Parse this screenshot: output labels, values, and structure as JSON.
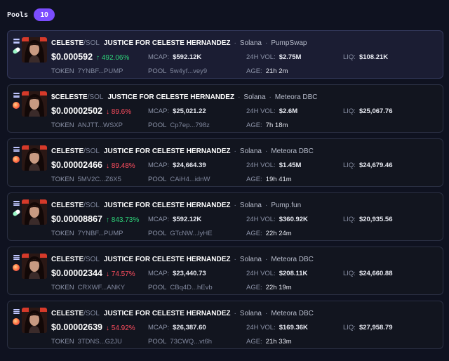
{
  "header": {
    "title": "Pools",
    "count": "10"
  },
  "labels": {
    "mcap": "MCAP:",
    "vol": "24H VOL:",
    "liq": "LIQ:",
    "token": "TOKEN",
    "pool": "POOL",
    "age": "AGE:",
    "sep": "·",
    "slash": "/"
  },
  "pools": [
    {
      "symbol": "CELESTE",
      "quote": "SOL",
      "name": "JUSTICE FOR CELESTE HERNANDEZ",
      "chain": "Solana",
      "dex": "PumpSwap",
      "dex_icon": "pill-icon",
      "price": "$0.000592",
      "change": "↑ 492.06%",
      "change_dir": "up",
      "mcap": "$592.12K",
      "vol": "$2.75M",
      "liq": "$108.21K",
      "token": "7YNBF...PUMP",
      "pool": "5w4yf...vey9",
      "age": "21h 2m"
    },
    {
      "symbol": "$CELESTE",
      "quote": "SOL",
      "name": "JUSTICE FOR CELESTE HERNANDEZ",
      "chain": "Solana",
      "dex": "Meteora DBC",
      "dex_icon": "meteora-icon",
      "price": "$0.00002502",
      "change": "↓ 89.6%",
      "change_dir": "down",
      "mcap": "$25,021.22",
      "vol": "$2.6M",
      "liq": "$25,067.76",
      "token": "ANJTT...WSXP",
      "pool": "Cp7ep...798z",
      "age": "7h 18m"
    },
    {
      "symbol": "CELESTE",
      "quote": "SOL",
      "name": "JUSTICE FOR CELESTE HERNANDEZ",
      "chain": "Solana",
      "dex": "Meteora DBC",
      "dex_icon": "meteora-icon",
      "price": "$0.00002466",
      "change": "↓ 89.48%",
      "change_dir": "down",
      "mcap": "$24,664.39",
      "vol": "$1.45M",
      "liq": "$24,679.46",
      "token": "5MV2C...Z6X5",
      "pool": "CAiH4...idnW",
      "age": "19h 41m"
    },
    {
      "symbol": "CELESTE",
      "quote": "SOL",
      "name": "JUSTICE FOR CELESTE HERNANDEZ",
      "chain": "Solana",
      "dex": "Pump.fun",
      "dex_icon": "pill-icon",
      "price": "$0.00008867",
      "change": "↑ 843.73%",
      "change_dir": "up",
      "mcap": "$592.12K",
      "vol": "$360.92K",
      "liq": "$20,935.56",
      "token": "7YNBF...PUMP",
      "pool": "GTcNW...lyHE",
      "age": "22h 24m"
    },
    {
      "symbol": "CELESTE",
      "quote": "SOL",
      "name": "JUSTICE FOR CELESTE HERNANDEZ",
      "chain": "Solana",
      "dex": "Meteora DBC",
      "dex_icon": "meteora-icon",
      "price": "$0.00002344",
      "change": "↓ 74.57%",
      "change_dir": "down",
      "mcap": "$23,440.73",
      "vol": "$208.11K",
      "liq": "$24,660.88",
      "token": "CRXWF...ANKY",
      "pool": "CBq4D...hEvb",
      "age": "22h 19m"
    },
    {
      "symbol": "CELESTE",
      "quote": "SOL",
      "name": "JUSTICE FOR CELESTE HERNANDEZ",
      "chain": "Solana",
      "dex": "Meteora DBC",
      "dex_icon": "meteora-icon",
      "price": "$0.00002639",
      "change": "↓ 54.92%",
      "change_dir": "down",
      "mcap": "$26,387.60",
      "vol": "$169.36K",
      "liq": "$27,958.79",
      "token": "3TDNS...G2JU",
      "pool": "73CWQ...vt6h",
      "age": "21h 33m"
    }
  ]
}
